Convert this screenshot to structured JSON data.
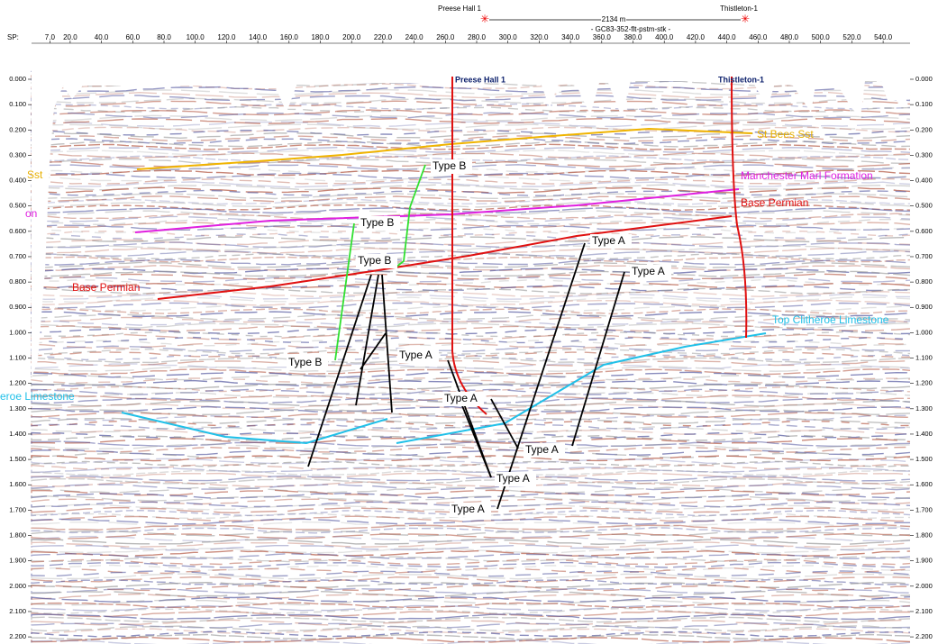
{
  "header": {
    "well_left": "Preese Hall 1",
    "well_right": "Thistleton-1",
    "distance": "2134 m",
    "line_name": "- GC83-352-flt-pstm-stk -"
  },
  "sp_axis": {
    "label": "SP:",
    "ticks": [
      "7.0",
      "20.0",
      "40.0",
      "60.0",
      "80.0",
      "100.0",
      "120.0",
      "140.0",
      "160.0",
      "180.0",
      "200.0",
      "220.0",
      "240.0",
      "260.0",
      "280.0",
      "300.0",
      "320.0",
      "340.0",
      "360.0",
      "380.0",
      "400.0",
      "420.0",
      "440.0",
      "460.0",
      "480.0",
      "500.0",
      "520.0",
      "540.0"
    ]
  },
  "time_axis": {
    "ticks": [
      "0.000",
      "0.100",
      "0.200",
      "0.300",
      "0.400",
      "0.500",
      "0.600",
      "0.700",
      "0.800",
      "0.900",
      "1.000",
      "1.100",
      "1.200",
      "1.300",
      "1.400",
      "1.500",
      "1.600",
      "1.700",
      "1.800",
      "1.900",
      "2.000",
      "2.100",
      "2.200"
    ]
  },
  "wells": [
    "Preese Hall 1",
    "Thistleton-1"
  ],
  "horizons": {
    "st_bees": "St Bees Sst",
    "st_bees_left": "Sst",
    "manchester": "Manchester Marl Formation",
    "manchester_left": "on",
    "base_permian_right": "Base Permian",
    "base_permian_left": "Base Permian",
    "clitheroe_right": "Top Clitheroe Limestone",
    "clitheroe_left": "eroe Limestone"
  },
  "fault_labels": [
    "Type B",
    "Type B",
    "Type B",
    "Type B",
    "Type A",
    "Type A",
    "Type A",
    "Type A",
    "Type A",
    "Type A",
    "Type A"
  ]
}
